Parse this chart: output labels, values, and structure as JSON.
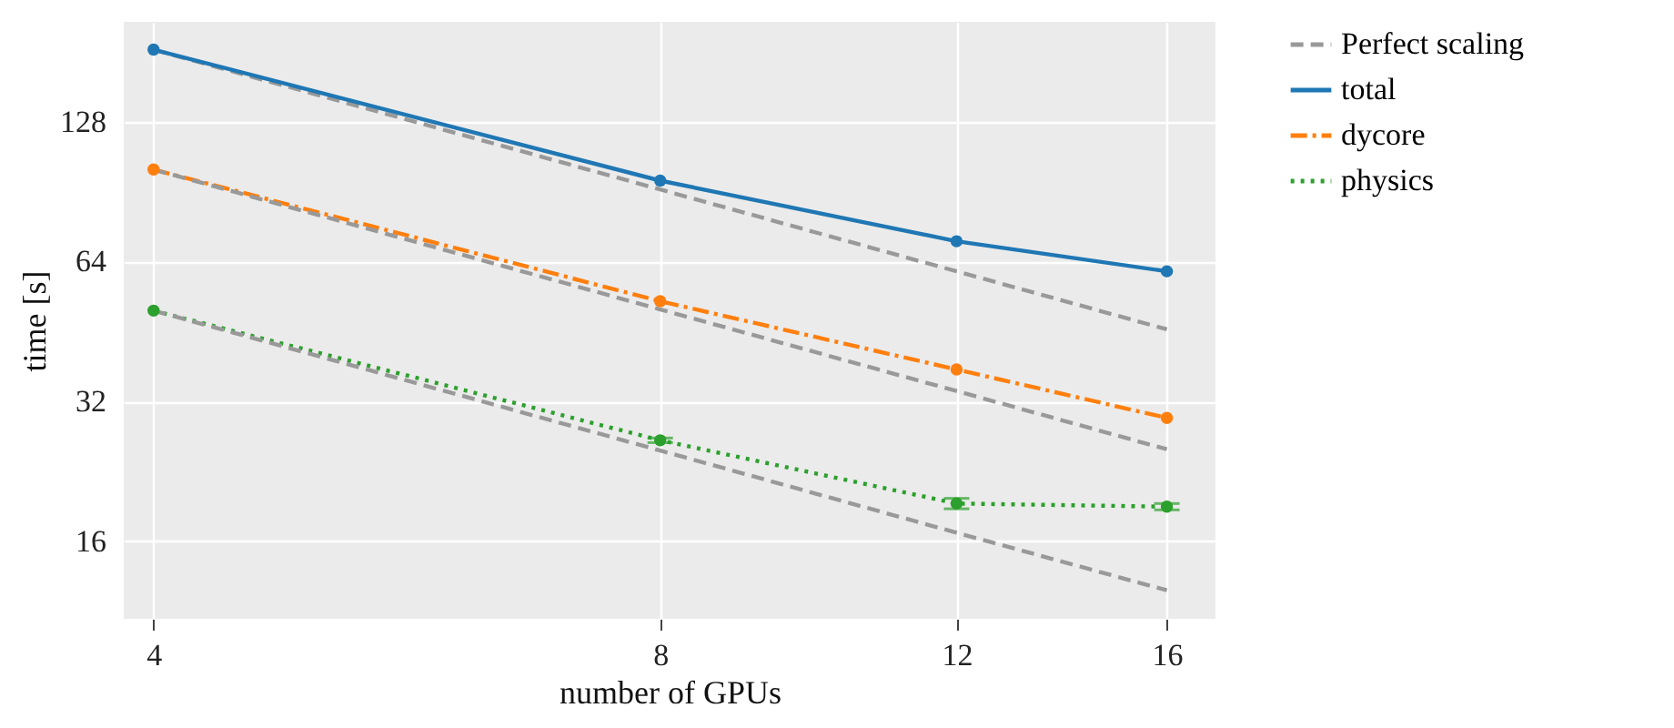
{
  "chart_data": {
    "type": "line",
    "xlabel": "number of GPUs",
    "ylabel": "time [s]",
    "x": [
      4,
      8,
      12,
      16
    ],
    "series": [
      {
        "name": "Perfect scaling",
        "color": "#999999",
        "values": [
          183,
          91.5,
          61,
          45.75
        ],
        "line_style": "dashed",
        "marker": "none"
      },
      {
        "color": "#999999",
        "values": [
          101,
          50.5,
          33.7,
          25.25
        ],
        "line_style": "dashed",
        "marker": "none"
      },
      {
        "color": "#999999",
        "values": [
          50.2,
          25.1,
          16.7,
          12.55
        ],
        "line_style": "dashed",
        "marker": "none"
      },
      {
        "name": "total",
        "color": "#1f77b4",
        "values": [
          183,
          95.6,
          70.8,
          61
        ],
        "line_style": "solid",
        "marker": "circle"
      },
      {
        "name": "dycore",
        "color": "#ff7f0e",
        "values": [
          101,
          52.6,
          37.5,
          29.5
        ],
        "line_style": "dashdot",
        "marker": "circle"
      },
      {
        "name": "physics",
        "color": "#2ca02c",
        "values": [
          50.2,
          26.4,
          19.3,
          19.0
        ],
        "errors": [
          null,
          0.3,
          0.5,
          0.3
        ],
        "line_style": "dotted",
        "marker": "circle"
      }
    ],
    "log": "xy",
    "xlim": [
      3.84,
      17.1
    ],
    "ylim": [
      10.9,
      210
    ],
    "xticks": [
      4,
      8,
      12,
      16
    ],
    "yticks": [
      16,
      32,
      64,
      128
    ],
    "grid": true,
    "legend": "right"
  }
}
